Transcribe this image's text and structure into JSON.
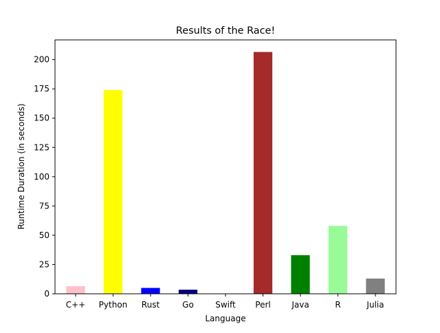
{
  "chart_data": {
    "type": "bar",
    "title": "Results of the Race!",
    "xlabel": "Language",
    "ylabel": "Runtime Duration (in seconds)",
    "categories": [
      "C++",
      "Python",
      "Rust",
      "Go",
      "Swift",
      "Perl",
      "Java",
      "R",
      "Julia"
    ],
    "values": [
      6.5,
      174,
      5,
      3.5,
      0,
      206.5,
      33,
      58,
      13
    ],
    "colors": [
      "#ffc0cb",
      "#ffff00",
      "#0000ff",
      "#000080",
      "#c0c0c0",
      "#a52a2a",
      "#008000",
      "#98fb98",
      "#808080"
    ],
    "ylim": [
      0,
      216.8
    ],
    "yticks": [
      0,
      25,
      50,
      75,
      100,
      125,
      150,
      175,
      200
    ],
    "grid": false
  }
}
